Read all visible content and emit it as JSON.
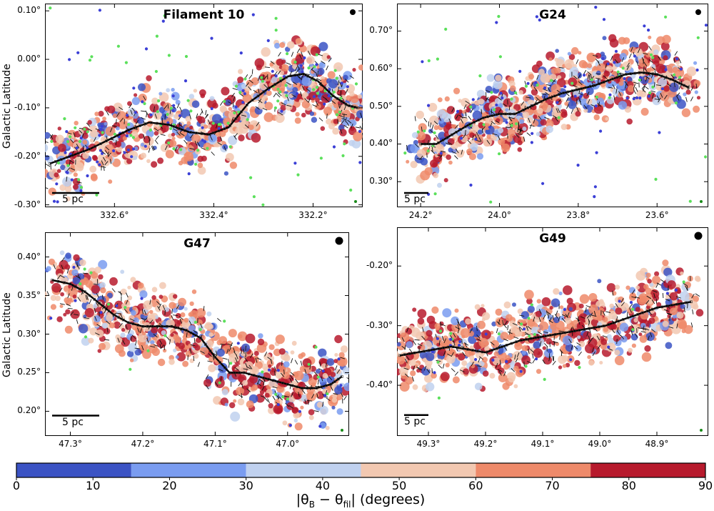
{
  "chart_data": [
    {
      "type": "scatter",
      "title": "Filament 10",
      "ylabel": "Galactic Latitude",
      "xlabel": "",
      "x_ticks": [
        "332.6°",
        "332.4°",
        "332.2°"
      ],
      "x_tick_values": [
        332.6,
        332.4,
        332.2
      ],
      "xlim": [
        332.74,
        332.1
      ],
      "y_ticks": [
        "0.10°",
        "0.00°",
        "-0.10°",
        "-0.20°",
        "-0.30°"
      ],
      "y_tick_values": [
        0.1,
        0.0,
        -0.1,
        -0.2,
        -0.3
      ],
      "ylim": [
        -0.305,
        0.115
      ],
      "scale_bar": "5 pc",
      "spine": {
        "x": [
          332.73,
          332.69,
          332.65,
          332.61,
          332.57,
          332.53,
          332.49,
          332.45,
          332.41,
          332.37,
          332.33,
          332.29,
          332.25,
          332.22,
          332.19,
          332.16,
          332.13,
          332.11
        ],
        "y": [
          -0.215,
          -0.2,
          -0.185,
          -0.165,
          -0.145,
          -0.13,
          -0.135,
          -0.15,
          -0.155,
          -0.14,
          -0.09,
          -0.06,
          -0.035,
          -0.03,
          -0.045,
          -0.075,
          -0.095,
          -0.1
        ]
      }
    },
    {
      "type": "scatter",
      "title": "G24",
      "ylabel": "",
      "xlabel": "",
      "x_ticks": [
        "24.2°",
        "24.0°",
        "23.8°",
        "23.6°"
      ],
      "x_tick_values": [
        24.2,
        24.0,
        23.8,
        23.6
      ],
      "xlim": [
        24.26,
        23.47
      ],
      "y_ticks": [
        "0.70°",
        "0.60°",
        "0.50°",
        "0.40°",
        "0.30°"
      ],
      "y_tick_values": [
        0.7,
        0.6,
        0.5,
        0.4,
        0.3
      ],
      "ylim": [
        0.232,
        0.773
      ],
      "scale_bar": "5 pc",
      "spine": {
        "x": [
          24.2,
          24.16,
          24.12,
          24.08,
          24.04,
          24.0,
          23.96,
          23.92,
          23.88,
          23.84,
          23.8,
          23.76,
          23.72,
          23.68,
          23.64,
          23.6,
          23.56,
          23.52
        ],
        "y": [
          0.4,
          0.4,
          0.425,
          0.45,
          0.47,
          0.48,
          0.48,
          0.5,
          0.52,
          0.535,
          0.545,
          0.555,
          0.57,
          0.585,
          0.59,
          0.585,
          0.57,
          0.55
        ]
      }
    },
    {
      "type": "scatter",
      "title": "G47",
      "ylabel": "Galactic Latitude",
      "xlabel": "",
      "x_ticks": [
        "47.3°",
        "47.2°",
        "47.1°",
        "47.0°"
      ],
      "x_tick_values": [
        47.3,
        47.2,
        47.1,
        47.0
      ],
      "xlim": [
        47.335,
        46.915
      ],
      "y_ticks": [
        "0.40°",
        "0.35°",
        "0.30°",
        "0.25°",
        "0.20°"
      ],
      "y_tick_values": [
        0.4,
        0.35,
        0.3,
        0.25,
        0.2
      ],
      "ylim": [
        0.168,
        0.432
      ],
      "scale_bar": "5 pc",
      "spine": {
        "x": [
          47.325,
          47.3,
          47.28,
          47.26,
          47.24,
          47.22,
          47.2,
          47.18,
          47.16,
          47.14,
          47.12,
          47.1,
          47.08,
          47.06,
          47.04,
          47.02,
          47.0,
          46.98,
          46.96,
          46.94,
          46.925
        ],
        "y": [
          0.37,
          0.365,
          0.355,
          0.34,
          0.325,
          0.315,
          0.31,
          0.31,
          0.31,
          0.305,
          0.295,
          0.27,
          0.25,
          0.25,
          0.245,
          0.24,
          0.235,
          0.23,
          0.23,
          0.235,
          0.245
        ]
      }
    },
    {
      "type": "scatter",
      "title": "G49",
      "ylabel": "",
      "xlabel": "",
      "x_ticks": [
        "49.3°",
        "49.2°",
        "49.1°",
        "49.0°",
        "48.9°"
      ],
      "x_tick_values": [
        49.3,
        49.2,
        49.1,
        49.0,
        48.9
      ],
      "xlim": [
        49.355,
        48.81
      ],
      "y_ticks": [
        "-0.20°",
        "-0.30°",
        "-0.40°"
      ],
      "y_tick_values": [
        -0.2,
        -0.3,
        -0.4
      ],
      "ylim": [
        -0.485,
        -0.135
      ],
      "scale_bar": "5 pc",
      "spine": {
        "x": [
          49.35,
          49.32,
          49.29,
          49.26,
          49.23,
          49.2,
          49.17,
          49.14,
          49.11,
          49.08,
          49.05,
          49.02,
          48.99,
          48.96,
          48.93,
          48.9,
          48.87,
          48.84
        ],
        "y": [
          -0.35,
          -0.345,
          -0.34,
          -0.335,
          -0.34,
          -0.345,
          -0.335,
          -0.325,
          -0.32,
          -0.315,
          -0.31,
          -0.305,
          -0.3,
          -0.29,
          -0.28,
          -0.27,
          -0.265,
          -0.26
        ]
      }
    }
  ],
  "colorbar": {
    "ticks": [
      "0",
      "10",
      "20",
      "30",
      "40",
      "50",
      "60",
      "70",
      "80",
      "90"
    ],
    "range": [
      0,
      90
    ],
    "bins": [
      {
        "from": 0,
        "to": 15,
        "color": "#3b53c4"
      },
      {
        "from": 15,
        "to": 30,
        "color": "#7a9cf0"
      },
      {
        "from": 30,
        "to": 45,
        "color": "#c0d1ef"
      },
      {
        "from": 45,
        "to": 60,
        "color": "#f2c8b1"
      },
      {
        "from": 60,
        "to": 75,
        "color": "#ee8a6a"
      },
      {
        "from": 75,
        "to": 90,
        "color": "#b71a2d"
      }
    ],
    "label": "|θB − θfil| (degrees)"
  },
  "colors": {
    "blue_dots": "#3b3fd6",
    "green_dots": "#5be05b",
    "spine": "#000000"
  }
}
